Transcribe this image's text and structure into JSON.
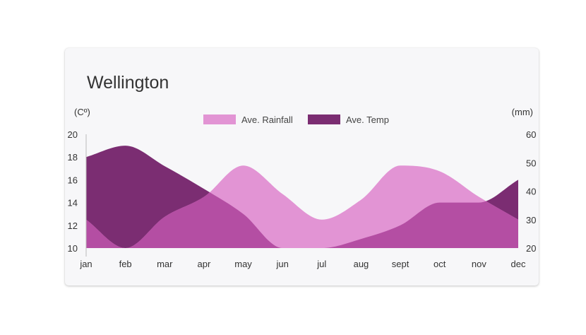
{
  "card": {
    "title": "Wellington"
  },
  "chart_data": {
    "type": "area",
    "title": "Wellington",
    "categories": [
      "jan",
      "feb",
      "mar",
      "apr",
      "may",
      "jun",
      "jul",
      "aug",
      "sept",
      "oct",
      "nov",
      "dec"
    ],
    "y_left": {
      "label": "(Cº)",
      "range": [
        10,
        20
      ],
      "ticks": [
        10,
        12,
        14,
        16,
        18,
        20
      ]
    },
    "y_right": {
      "label": "(mm)",
      "range": [
        20,
        60
      ],
      "ticks": [
        20,
        30,
        40,
        50,
        60
      ]
    },
    "legend_position": "top-center",
    "grid": false,
    "series": [
      {
        "name": "Ave. Rainfall",
        "axis": "right",
        "color": "#e294d4",
        "values": [
          30,
          20,
          31,
          38,
          49,
          39,
          30,
          37,
          49,
          47,
          38,
          30
        ]
      },
      {
        "name": "Ave. Temp",
        "axis": "left",
        "color": "#7b2d72",
        "values": [
          18,
          19,
          17.2,
          15.2,
          13,
          10,
          10,
          10.8,
          12,
          14,
          14,
          16
        ]
      }
    ],
    "overlap_color": "#b44ea3"
  }
}
